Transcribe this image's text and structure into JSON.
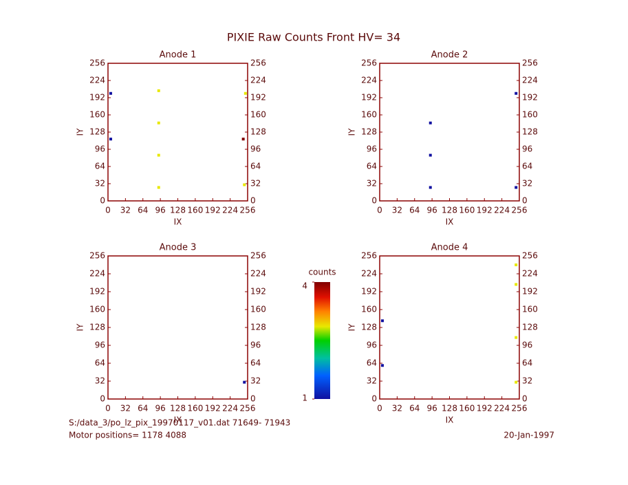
{
  "title": "PIXIE Raw Counts Front HV= 34",
  "panels": [
    {
      "title": "Anode 1",
      "xlabel": "IX",
      "ylabel": "IY",
      "xlim": [
        0,
        256
      ],
      "ylim": [
        0,
        256
      ],
      "xticks": [
        0,
        32,
        64,
        96,
        128,
        160,
        192,
        224,
        256
      ],
      "yticks": [
        0,
        32,
        64,
        96,
        128,
        160,
        192,
        224,
        256
      ],
      "points": {
        "x": [
          93,
          93,
          93,
          93,
          250,
          248,
          252,
          5,
          5
        ],
        "y": [
          25,
          85,
          145,
          205,
          30,
          115,
          200,
          115,
          200
        ],
        "values": [
          3,
          3,
          3,
          3,
          3,
          4,
          3,
          2,
          2
        ]
      }
    },
    {
      "title": "Anode 2",
      "xlabel": "IX",
      "ylabel": "IY",
      "xlim": [
        0,
        256
      ],
      "ylim": [
        0,
        256
      ],
      "xticks": [
        0,
        32,
        64,
        96,
        128,
        160,
        192,
        224,
        256
      ],
      "yticks": [
        0,
        32,
        64,
        96,
        128,
        160,
        192,
        224,
        256
      ],
      "points": {
        "x": [
          93,
          93,
          93,
          250,
          250
        ],
        "y": [
          145,
          85,
          25,
          25,
          200
        ],
        "values": [
          2,
          2,
          2,
          2,
          2
        ]
      }
    },
    {
      "title": "Anode 3",
      "xlabel": "IX",
      "ylabel": "IY",
      "xlim": [
        0,
        256
      ],
      "ylim": [
        0,
        256
      ],
      "xticks": [
        0,
        32,
        64,
        96,
        128,
        160,
        192,
        224,
        256
      ],
      "yticks": [
        0,
        32,
        64,
        96,
        128,
        160,
        192,
        224,
        256
      ],
      "points": {
        "x": [
          250
        ],
        "y": [
          30
        ],
        "values": [
          2
        ]
      }
    },
    {
      "title": "Anode 4",
      "xlabel": "IX",
      "ylabel": "IY",
      "xlim": [
        0,
        256
      ],
      "ylim": [
        0,
        256
      ],
      "xticks": [
        0,
        32,
        64,
        96,
        128,
        160,
        192,
        224,
        256
      ],
      "yticks": [
        0,
        32,
        64,
        96,
        128,
        160,
        192,
        224,
        256
      ],
      "points": {
        "x": [
          250,
          250,
          250,
          250,
          5,
          5
        ],
        "y": [
          30,
          110,
          205,
          240,
          60,
          140
        ],
        "values": [
          3,
          3,
          3,
          3,
          2,
          2
        ]
      }
    }
  ],
  "colorbar": {
    "label": "counts",
    "lim": [
      1,
      4
    ],
    "ticks": [
      1,
      4
    ]
  },
  "footer": {
    "file": "S:/data_3/po_lz_pix_19970117_v01.dat   71649- 71943",
    "motor": "Motor positions= 1178 4088",
    "date": "20-Jan-1997"
  }
}
